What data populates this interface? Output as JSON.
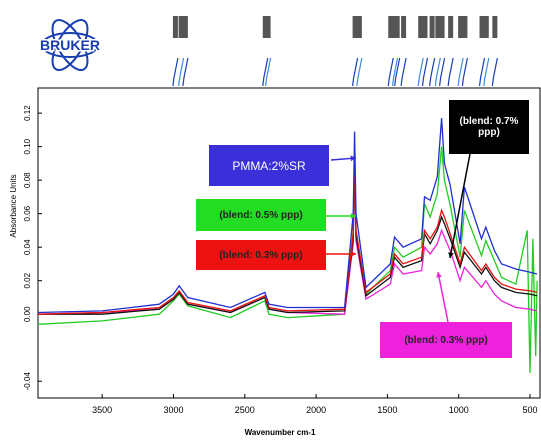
{
  "logo": {
    "text": "BRUKER",
    "color": "#1a3fb0"
  },
  "chart_data": {
    "type": "line",
    "title": "",
    "xlabel": "Wavenumber cm-1",
    "ylabel": "Absorbance Units",
    "xlim": [
      3950,
      430
    ],
    "ylim": [
      -0.05,
      0.135
    ],
    "x_reversed": true,
    "xticks": [
      3500,
      3000,
      2500,
      2000,
      1500,
      1000,
      500
    ],
    "yticks": [
      -0.04,
      0.0,
      0.02,
      0.04,
      0.06,
      0.08,
      0.1,
      0.12
    ],
    "ytick_labels": [
      "-0.04",
      "0.00",
      "0.02",
      "0.04",
      "0.06",
      "0.08",
      "0.10",
      "0.12"
    ],
    "grid": false,
    "series": [
      {
        "name": "PMMA:2%SR",
        "color": "#1f2fd0",
        "x": [
          3950,
          3500,
          3100,
          3000,
          2960,
          2900,
          2600,
          2360,
          2330,
          2200,
          1800,
          1740,
          1730,
          1720,
          1650,
          1480,
          1450,
          1390,
          1260,
          1240,
          1200,
          1150,
          1120,
          1100,
          1060,
          990,
          960,
          840,
          810,
          750,
          700,
          600,
          500,
          450
        ],
        "y": [
          0.001,
          0.002,
          0.006,
          0.012,
          0.017,
          0.01,
          0.004,
          0.013,
          0.006,
          0.004,
          0.004,
          0.06,
          0.109,
          0.06,
          0.016,
          0.03,
          0.046,
          0.04,
          0.045,
          0.07,
          0.068,
          0.082,
          0.117,
          0.09,
          0.077,
          0.042,
          0.076,
          0.045,
          0.052,
          0.038,
          0.03,
          0.027,
          0.025,
          0.024
        ]
      },
      {
        "name": "(blend: 0.5% ppp)",
        "color": "#22cc22",
        "x": [
          3950,
          3500,
          3100,
          3000,
          2960,
          2900,
          2600,
          2360,
          2330,
          2200,
          1800,
          1740,
          1730,
          1720,
          1650,
          1480,
          1450,
          1390,
          1260,
          1240,
          1200,
          1150,
          1120,
          1100,
          1060,
          990,
          960,
          840,
          810,
          750,
          700,
          600,
          520,
          500,
          480,
          460,
          450
        ],
        "y": [
          -0.006,
          -0.004,
          0.0,
          0.008,
          0.012,
          0.005,
          -0.002,
          0.008,
          0.0,
          -0.002,
          0.0,
          0.05,
          0.09,
          0.05,
          0.012,
          0.026,
          0.04,
          0.034,
          0.04,
          0.066,
          0.058,
          0.072,
          0.1,
          0.08,
          0.065,
          0.034,
          0.062,
          0.035,
          0.044,
          0.032,
          0.022,
          0.018,
          0.05,
          -0.035,
          0.045,
          -0.025,
          0.02
        ]
      },
      {
        "name": "(blend: 0.3% ppp)",
        "color": "#e81010",
        "x": [
          3950,
          3500,
          3100,
          3000,
          2960,
          2900,
          2600,
          2360,
          2330,
          2200,
          1800,
          1740,
          1730,
          1720,
          1650,
          1480,
          1450,
          1390,
          1260,
          1240,
          1200,
          1150,
          1120,
          1100,
          1060,
          990,
          960,
          840,
          810,
          750,
          700,
          600,
          500,
          450
        ],
        "y": [
          0.0,
          0.001,
          0.004,
          0.01,
          0.014,
          0.007,
          0.002,
          0.011,
          0.004,
          0.002,
          0.003,
          0.048,
          0.095,
          0.05,
          0.013,
          0.024,
          0.036,
          0.03,
          0.034,
          0.05,
          0.045,
          0.052,
          0.062,
          0.058,
          0.048,
          0.03,
          0.04,
          0.026,
          0.03,
          0.022,
          0.018,
          0.015,
          0.014,
          0.013
        ]
      },
      {
        "name": "(blend: 0.7% ppp)",
        "color": "#111111",
        "x": [
          3950,
          3500,
          3100,
          3000,
          2960,
          2900,
          2600,
          2360,
          2330,
          2200,
          1800,
          1740,
          1730,
          1720,
          1650,
          1480,
          1450,
          1390,
          1260,
          1240,
          1200,
          1150,
          1120,
          1100,
          1060,
          990,
          960,
          840,
          810,
          750,
          700,
          600,
          500,
          450
        ],
        "y": [
          0.0,
          0.0,
          0.003,
          0.009,
          0.013,
          0.006,
          0.001,
          0.01,
          0.003,
          0.001,
          0.002,
          0.045,
          0.092,
          0.047,
          0.011,
          0.022,
          0.034,
          0.028,
          0.032,
          0.048,
          0.042,
          0.05,
          0.058,
          0.054,
          0.045,
          0.028,
          0.037,
          0.024,
          0.028,
          0.02,
          0.016,
          0.013,
          0.012,
          0.011
        ]
      },
      {
        "name": "(blend: 0.3% ppp)",
        "color": "#ee22dd",
        "x": [
          3950,
          3500,
          3100,
          3000,
          2960,
          2900,
          2600,
          2360,
          2330,
          2200,
          1800,
          1740,
          1730,
          1720,
          1650,
          1480,
          1450,
          1390,
          1260,
          1240,
          1200,
          1150,
          1120,
          1100,
          1060,
          990,
          960,
          840,
          810,
          750,
          700,
          600,
          500,
          450
        ],
        "y": [
          0.0,
          0.001,
          0.003,
          0.009,
          0.013,
          0.006,
          0.001,
          0.01,
          0.003,
          0.001,
          0.0,
          0.042,
          0.088,
          0.044,
          0.009,
          0.018,
          0.03,
          0.024,
          0.026,
          0.04,
          0.036,
          0.042,
          0.05,
          0.046,
          0.038,
          0.02,
          0.028,
          0.016,
          0.02,
          0.012,
          0.008,
          0.004,
          0.003,
          0.002
        ]
      }
    ],
    "annotations": [
      {
        "text": "PMMA:2%SR",
        "bg": "#3a2fd8",
        "fg": "#ffffff",
        "series": 0
      },
      {
        "text": "(blend: 0.5% ppp)",
        "bg": "#22dd22",
        "fg": "#222222",
        "series": 1
      },
      {
        "text": "(blend: 0.3% ppp)",
        "bg": "#ee1111",
        "fg": "#222222",
        "series": 2
      },
      {
        "text": "(blend: 0.7% ppp)",
        "bg": "#000000",
        "fg": "#ffffff",
        "series": 3
      },
      {
        "text": "(blend: 0.3% ppp)",
        "bg": "#ee22dd",
        "fg": "#222222",
        "series": 4
      }
    ]
  }
}
